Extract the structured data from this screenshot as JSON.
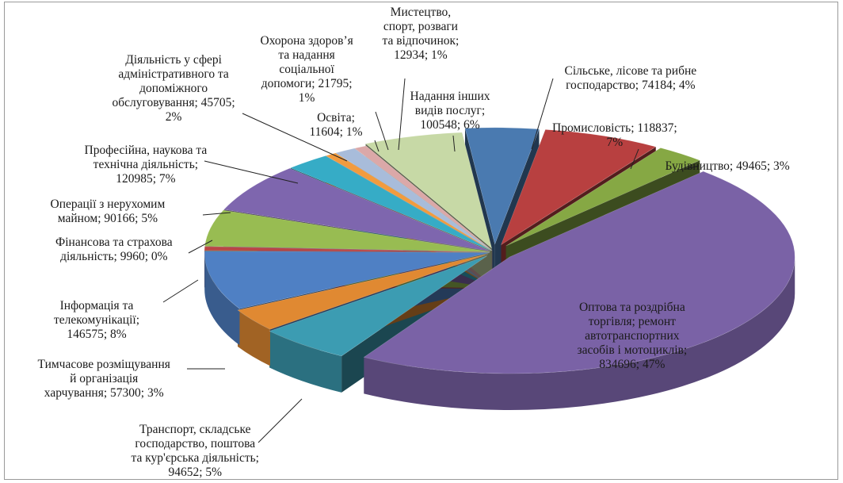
{
  "chart_data": {
    "type": "pie",
    "title": "",
    "categories": [
      "Сільське, лісове та рибне господарство",
      "Промисловість",
      "Будівництво",
      "Оптова та роздрібна торгівля; ремонт автотранспортних засобів і мотоциклів",
      "Транспорт, складське господарство, поштова та кур'єрська діяльність",
      "Тимчасове розміщування й організація харчування",
      "Інформація та телекомунікації",
      "Фінансова та страхова діяльність",
      "Операції з нерухомим майном",
      "Професійна, наукова та технічна діяльність",
      "Діяльність у сфері адміністративного та допоміжного обслуговування",
      "Освіта",
      "Охорона здоров’я та надання соціальної допомоги",
      "Мистецтво, спорт, розваги та відпочинок",
      "Надання інших видів послуг"
    ],
    "values": [
      74184,
      118837,
      49465,
      834696,
      94652,
      57300,
      146575,
      9960,
      90166,
      120985,
      45705,
      11604,
      21795,
      12934,
      100548
    ],
    "percents": [
      4,
      7,
      3,
      47,
      5,
      3,
      8,
      0,
      5,
      7,
      2,
      1,
      1,
      1,
      6
    ],
    "colors": [
      "#4a7ab0",
      "#b84040",
      "#86a844",
      "#7a62a6",
      "#3c9cb2",
      "#e08932",
      "#4f80c4",
      "#b84646",
      "#98bc52",
      "#7e66ae",
      "#36acc6",
      "#f29b3e",
      "#a8bcda",
      "#dba8a8",
      "#c7d9a6"
    ],
    "data_labels": [
      [
        "Сільське, лісове та рибне",
        "господарство; 74184; 4%"
      ],
      [
        "Промисловість; 118837;",
        "7%"
      ],
      [
        "Будівництво; 49465; 3%"
      ],
      [
        "Оптова та роздрібна",
        "торгівля; ремонт",
        "автотранспортних",
        "засобів і мотоциклів;",
        "834696; 47%"
      ],
      [
        "Транспорт, складське",
        "господарство, поштова",
        "та кур'єрська діяльність;",
        "94652; 5%"
      ],
      [
        "Тимчасове розміщування",
        "й організація",
        "харчування; 57300; 3%"
      ],
      [
        "Інформація та",
        "телекомунікації;",
        "146575; 8%"
      ],
      [
        "Фінансова та страхова",
        "діяльність; 9960; 0%"
      ],
      [
        "Операції з нерухомим",
        "майном; 90166; 5%"
      ],
      [
        "Професійна, наукова та",
        "технічна діяльність;",
        "120985; 7%"
      ],
      [
        "Діяльність у сфері",
        "адміністративного та",
        "допоміжного",
        "обслуговування; 45705;",
        "2%"
      ],
      [
        "Освіта;",
        "11604; 1%"
      ],
      [
        "Охорона здоров’я",
        "та надання",
        "соціальної",
        "допомоги; 21795;",
        "1%"
      ],
      [
        "Мистецтво,",
        "спорт, розваги",
        "та відпочинок;",
        "12934; 1%"
      ],
      [
        "Надання інших",
        "видів послуг;",
        "100548; 6%"
      ]
    ],
    "legend": "none",
    "style": "3d-exploded"
  }
}
